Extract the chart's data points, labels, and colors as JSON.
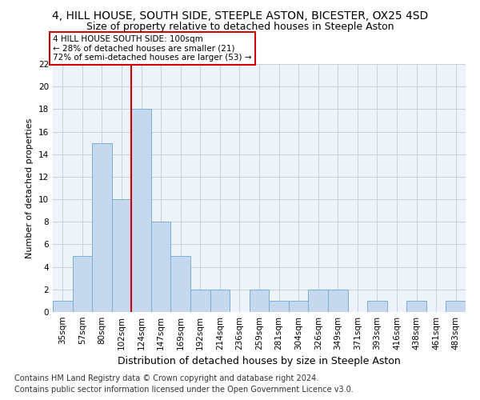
{
  "title": "4, HILL HOUSE, SOUTH SIDE, STEEPLE ASTON, BICESTER, OX25 4SD",
  "subtitle": "Size of property relative to detached houses in Steeple Aston",
  "xlabel": "Distribution of detached houses by size in Steeple Aston",
  "ylabel": "Number of detached properties",
  "categories": [
    "35sqm",
    "57sqm",
    "80sqm",
    "102sqm",
    "124sqm",
    "147sqm",
    "169sqm",
    "192sqm",
    "214sqm",
    "236sqm",
    "259sqm",
    "281sqm",
    "304sqm",
    "326sqm",
    "349sqm",
    "371sqm",
    "393sqm",
    "416sqm",
    "438sqm",
    "461sqm",
    "483sqm"
  ],
  "values": [
    1,
    5,
    15,
    10,
    18,
    8,
    5,
    2,
    2,
    0,
    2,
    1,
    1,
    2,
    2,
    0,
    1,
    0,
    1,
    0,
    1
  ],
  "bar_color": "#c5d8ee",
  "bar_edge_color": "#7aafd4",
  "vline_color": "#cc0000",
  "annotation_text": "4 HILL HOUSE SOUTH SIDE: 100sqm\n← 28% of detached houses are smaller (21)\n72% of semi-detached houses are larger (53) →",
  "annotation_box_color": "white",
  "annotation_box_edge": "#cc0000",
  "ylim": [
    0,
    22
  ],
  "yticks": [
    0,
    2,
    4,
    6,
    8,
    10,
    12,
    14,
    16,
    18,
    20,
    22
  ],
  "footnote1": "Contains HM Land Registry data © Crown copyright and database right 2024.",
  "footnote2": "Contains public sector information licensed under the Open Government Licence v3.0.",
  "bg_color": "#eef2f9",
  "grid_color": "#c8d0e0",
  "title_fontsize": 10,
  "subtitle_fontsize": 9,
  "xlabel_fontsize": 9,
  "ylabel_fontsize": 8,
  "tick_fontsize": 7.5,
  "footnote_fontsize": 7,
  "annot_fontsize": 7.5
}
